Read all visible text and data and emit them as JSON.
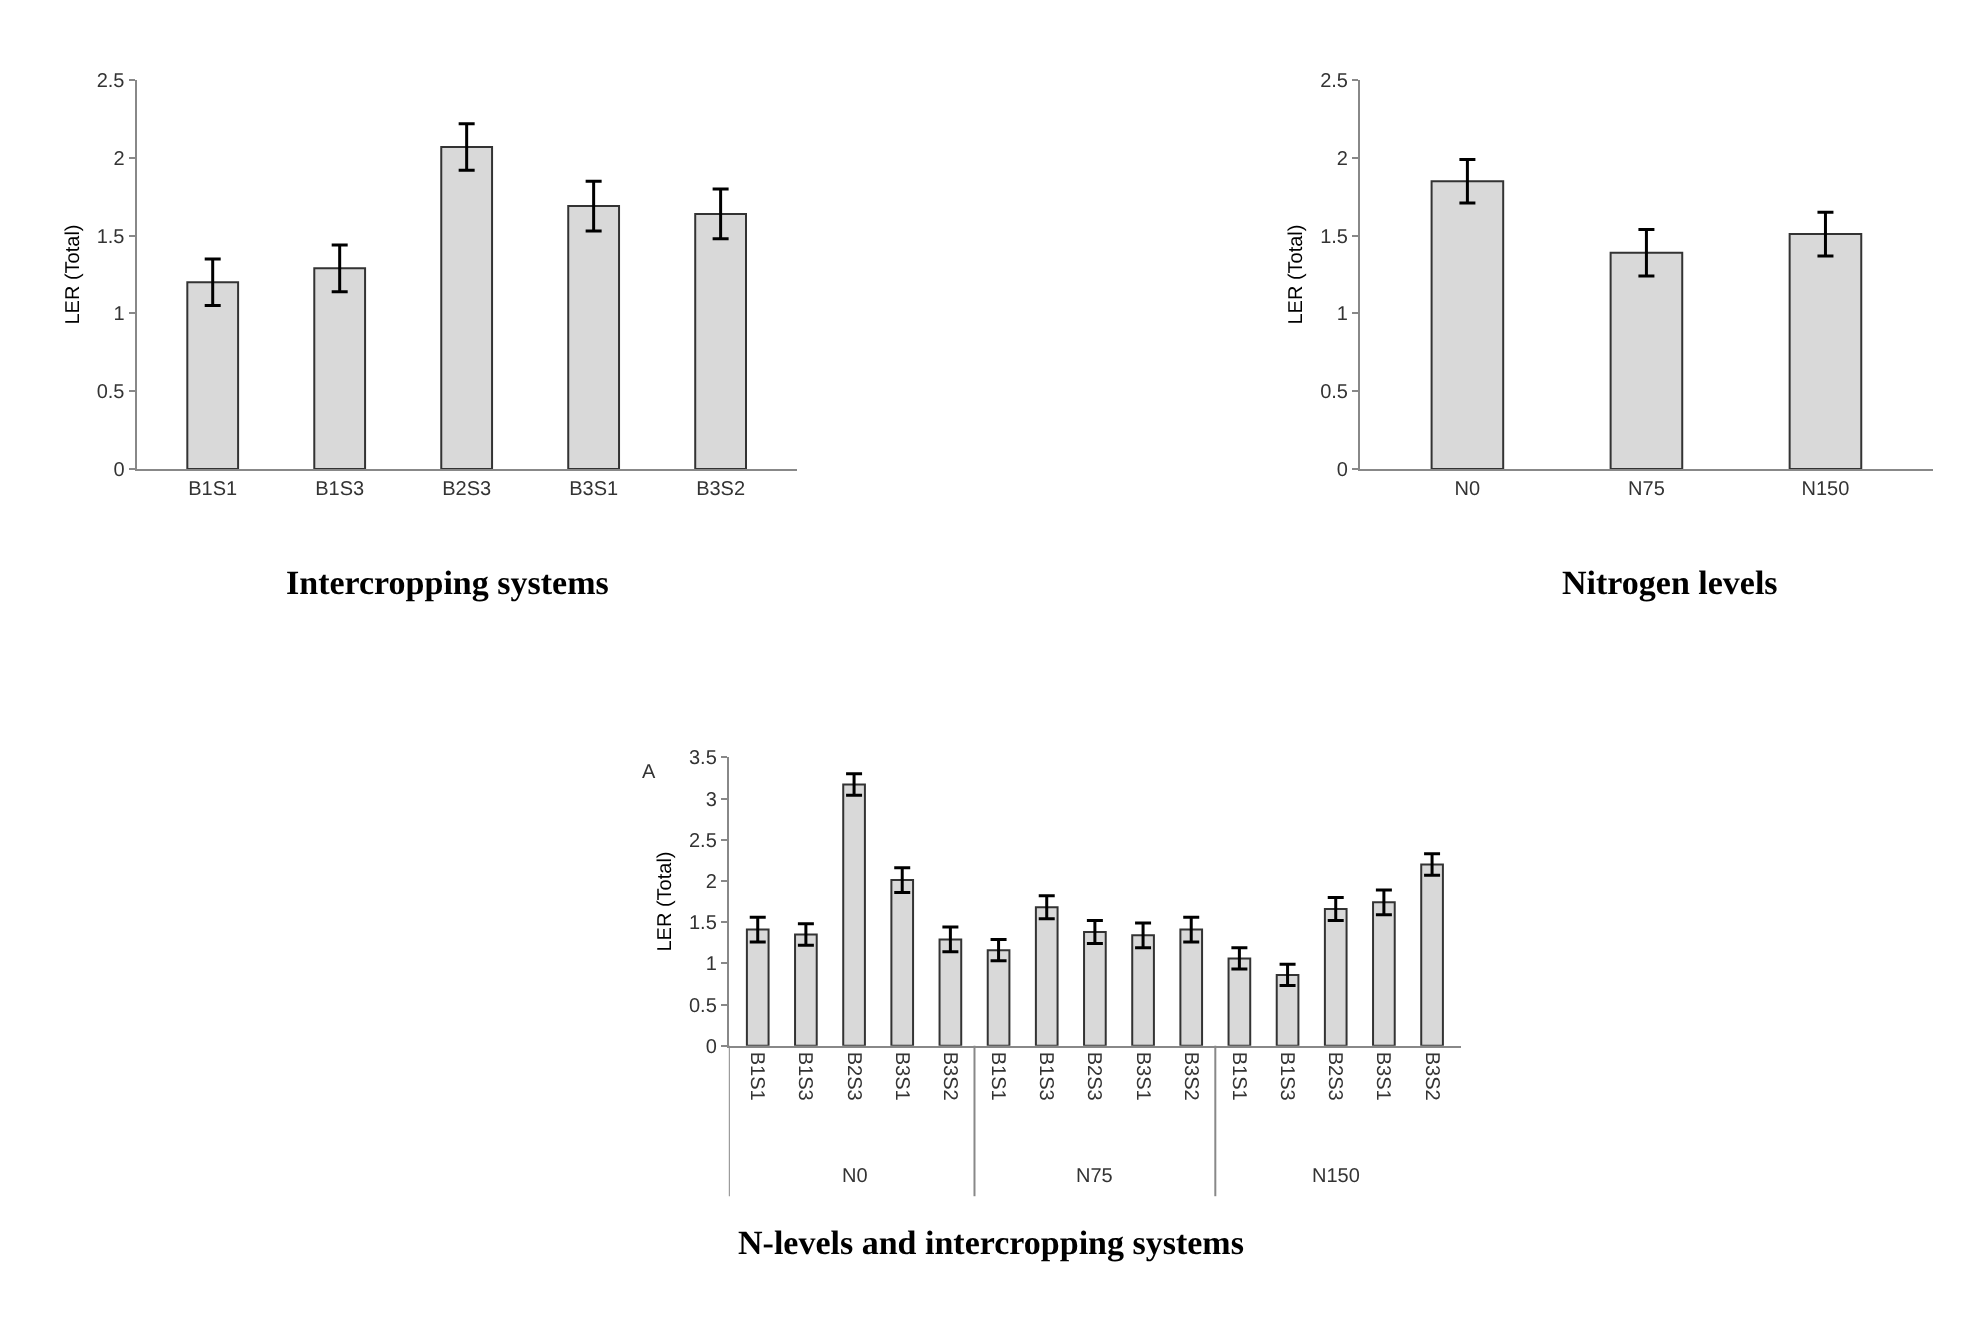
{
  "chart_data": [
    {
      "type": "bar",
      "title": "Intercropping systems",
      "ylabel": "LER (Total)",
      "categories": [
        "B1S1",
        "B1S3",
        "B2S3",
        "B3S1",
        "B3S2"
      ],
      "values": [
        1.2,
        1.29,
        2.07,
        1.69,
        1.64
      ],
      "errors": [
        0.15,
        0.15,
        0.15,
        0.16,
        0.16
      ],
      "color": "#d9d9d9",
      "ylim": [
        0,
        2.5
      ],
      "yticks": [
        0,
        0.5,
        1,
        1.5,
        2,
        2.5
      ]
    },
    {
      "type": "bar",
      "title": "Nitrogen levels",
      "ylabel": "LER (Total)",
      "categories": [
        "N0",
        "N75",
        "N150"
      ],
      "values": [
        1.85,
        1.39,
        1.51
      ],
      "errors": [
        0.14,
        0.15,
        0.14
      ],
      "color": "#d9d9d9",
      "ylim": [
        0,
        2.5
      ],
      "yticks": [
        0,
        0.5,
        1,
        1.5,
        2,
        2.5
      ]
    },
    {
      "type": "bar",
      "title": "N-levels and intercropping systems",
      "ylabel": "LER (Total)",
      "categories": [
        "B1S1",
        "B1S3",
        "B2S3",
        "B3S1",
        "B3S2",
        "B1S1",
        "B1S3",
        "B2S3",
        "B3S1",
        "B3S2",
        "B1S1",
        "B1S3",
        "B2S3",
        "B3S1",
        "B3S2"
      ],
      "values": [
        1.41,
        1.35,
        3.17,
        2.01,
        1.29,
        1.16,
        1.68,
        1.38,
        1.34,
        1.41,
        1.06,
        0.86,
        1.66,
        1.74,
        2.2
      ],
      "errors": [
        0.15,
        0.13,
        0.13,
        0.15,
        0.15,
        0.13,
        0.14,
        0.14,
        0.15,
        0.15,
        0.13,
        0.13,
        0.14,
        0.15,
        0.13
      ],
      "color": "#d9d9d9",
      "ylim": [
        0,
        3.5
      ],
      "yticks": [
        0,
        0.5,
        1,
        1.5,
        2,
        2.5,
        3,
        3.5
      ],
      "annotations": [
        "A",
        "N0",
        "N75",
        "N150"
      ]
    }
  ]
}
